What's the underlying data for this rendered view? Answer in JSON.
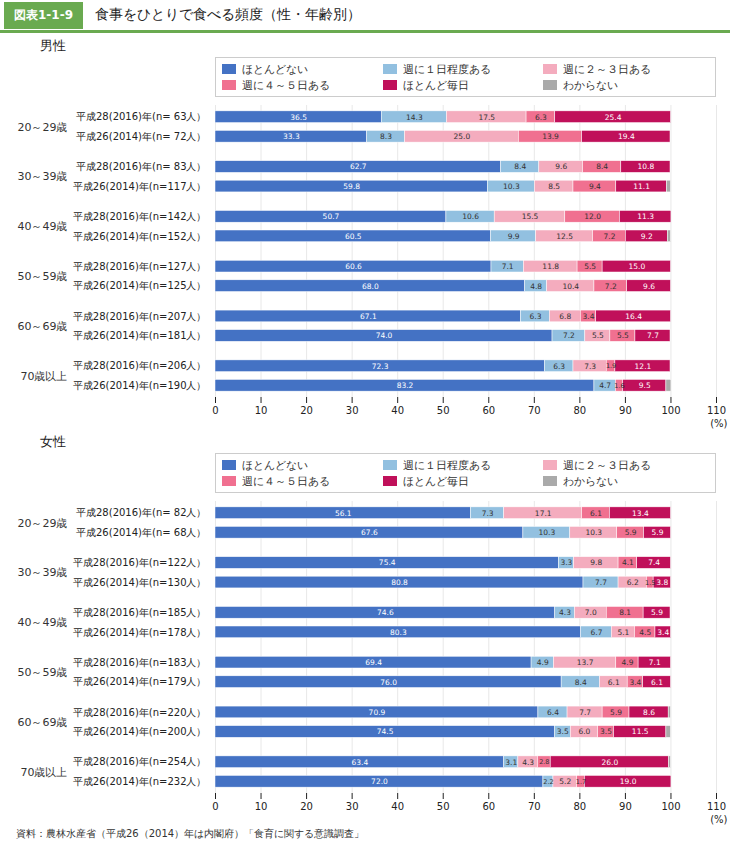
{
  "figure_label": "図表1-1-9",
  "title": "食事をひとりで食べる頻度（性・年齢別）",
  "source": "資料：農林水産省（平成26（2014）年は内閣府）「食育に関する意識調査」",
  "chart_data": [
    {
      "type": "bar",
      "title": "男性",
      "orientation": "horizontal",
      "stacked": true,
      "data_labels": true,
      "legend": "top",
      "grid": true,
      "xlabel": "(%)",
      "xlim": [
        0,
        110
      ],
      "xticks": [
        0,
        10,
        20,
        30,
        40,
        50,
        60,
        70,
        80,
        90,
        100,
        110
      ],
      "categories": [
        "平成28(2016)年(n= 63人）",
        "平成26(2014)年(n= 72人）",
        "平成28(2016)年(n= 83人）",
        "平成26(2014)年(n=117人）",
        "平成28(2016)年(n=142人）",
        "平成26(2014)年(n=152人）",
        "平成28(2016)年(n=127人）",
        "平成26(2014)年(n=125人）",
        "平成28(2016)年(n=207人）",
        "平成26(2014)年(n=181人）",
        "平成28(2016)年(n=206人）",
        "平成26(2014)年(n=190人）"
      ],
      "category_groups": [
        "20～29歳",
        "20～29歳",
        "30～39歳",
        "30～39歳",
        "40～49歳",
        "40～49歳",
        "50～59歳",
        "50～59歳",
        "60～69歳",
        "60～69歳",
        "70歳以上",
        "70歳以上"
      ],
      "series": [
        {
          "name": "ほとんどない",
          "color": "#4472c4",
          "values": [
            36.5,
            33.3,
            62.7,
            59.8,
            50.7,
            60.5,
            60.6,
            68.0,
            67.1,
            74.0,
            72.3,
            83.2
          ],
          "value_labels": [
            "36.5",
            "33.3",
            "62.7",
            "59.8",
            "50.7",
            "60.5",
            "60.6",
            "68.0",
            "67.1",
            "74.0",
            "72.3",
            "83.2"
          ]
        },
        {
          "name": "週に１日程度ある",
          "color": "#92c0e0",
          "values": [
            14.3,
            8.3,
            8.4,
            10.3,
            10.6,
            9.9,
            7.1,
            4.8,
            6.3,
            7.2,
            6.3,
            4.7
          ],
          "value_labels": [
            "14.3",
            "8.3",
            "8.4",
            "10.3",
            "10.6",
            "9.9",
            "7.1",
            "4.8",
            "6.3",
            "7.2",
            "6.3",
            "4.7"
          ]
        },
        {
          "name": "週に２～３日ある",
          "color": "#f4acbe",
          "values": [
            17.5,
            25.0,
            9.6,
            8.5,
            15.5,
            12.5,
            11.8,
            10.4,
            6.8,
            5.5,
            7.3,
            0.0
          ],
          "value_labels": [
            "17.5",
            "25.0",
            "9.6",
            "8.5",
            "15.5",
            "12.5",
            "11.8",
            "10.4",
            "6.8",
            "5.5",
            "7.3",
            null
          ]
        },
        {
          "name": "週に４～５日ある",
          "color": "#f07090",
          "values": [
            6.3,
            13.9,
            8.4,
            9.4,
            12.0,
            7.2,
            5.5,
            7.2,
            3.4,
            5.5,
            1.9,
            1.6
          ],
          "value_labels": [
            "6.3",
            "13.9",
            "8.4",
            "9.4",
            "12.0",
            "7.2",
            "5.5",
            "7.2",
            "3.4",
            "5.5",
            "1.9",
            "1.6"
          ]
        },
        {
          "name": "ほとんど毎日",
          "color": "#c0105a",
          "values": [
            25.4,
            19.4,
            10.8,
            11.1,
            11.3,
            9.2,
            15.0,
            9.6,
            16.4,
            7.7,
            12.1,
            9.5
          ],
          "value_labels": [
            "25.4",
            "19.4",
            "10.8",
            "11.1",
            "11.3",
            "9.2",
            "15.0",
            "9.6",
            "16.4",
            "7.7",
            "12.1",
            "9.5"
          ]
        },
        {
          "name": "わからない",
          "color": "#aaaaaa",
          "values": [
            0.0,
            0.0,
            0.0,
            0.9,
            0.0,
            0.7,
            0.0,
            0.0,
            0.0,
            0.0,
            0.0,
            1.1
          ],
          "value_labels": [
            null,
            null,
            null,
            null,
            null,
            null,
            null,
            null,
            null,
            null,
            null,
            null
          ]
        }
      ]
    },
    {
      "type": "bar",
      "title": "女性",
      "orientation": "horizontal",
      "stacked": true,
      "data_labels": true,
      "legend": "top",
      "grid": true,
      "xlabel": "(%)",
      "xlim": [
        0,
        110
      ],
      "xticks": [
        0,
        10,
        20,
        30,
        40,
        50,
        60,
        70,
        80,
        90,
        100,
        110
      ],
      "categories": [
        "平成28(2016)年(n= 82人）",
        "平成26(2014)年(n= 68人）",
        "平成28(2016)年(n=122人）",
        "平成26(2014)年(n=130人）",
        "平成28(2016)年(n=185人）",
        "平成26(2014)年(n=178人）",
        "平成28(2016)年(n=183人）",
        "平成26(2014)年(n=179人）",
        "平成28(2016)年(n=220人）",
        "平成26(2014)年(n=200人）",
        "平成28(2016)年(n=254人）",
        "平成26(2014)年(n=232人）"
      ],
      "category_groups": [
        "20～29歳",
        "20～29歳",
        "30～39歳",
        "30～39歳",
        "40～49歳",
        "40～49歳",
        "50～59歳",
        "50～59歳",
        "60～69歳",
        "60～69歳",
        "70歳以上",
        "70歳以上"
      ],
      "series": [
        {
          "name": "ほとんどない",
          "color": "#4472c4",
          "values": [
            56.1,
            67.6,
            75.4,
            80.8,
            74.6,
            80.3,
            69.4,
            76.0,
            70.9,
            74.5,
            63.4,
            72.0
          ],
          "value_labels": [
            "56.1",
            "67.6",
            "75.4",
            "80.8",
            "74.6",
            "80.3",
            "69.4",
            "76.0",
            "70.9",
            "74.5",
            "63.4",
            "72.0"
          ]
        },
        {
          "name": "週に１日程度ある",
          "color": "#92c0e0",
          "values": [
            7.3,
            10.3,
            3.3,
            7.7,
            4.3,
            6.7,
            4.9,
            8.4,
            6.4,
            3.5,
            3.1,
            2.2
          ],
          "value_labels": [
            "7.3",
            "10.3",
            "3.3",
            "7.7",
            "4.3",
            "6.7",
            "4.9",
            "8.4",
            "6.4",
            "3.5",
            "3.1",
            "2.2"
          ]
        },
        {
          "name": "週に２～３日ある",
          "color": "#f4acbe",
          "values": [
            17.1,
            10.3,
            9.8,
            6.2,
            7.0,
            5.1,
            13.7,
            6.1,
            7.7,
            6.0,
            4.3,
            5.2
          ],
          "value_labels": [
            "17.1",
            "10.3",
            "9.8",
            "6.2",
            "7.0",
            "5.1",
            "13.7",
            "6.1",
            "7.7",
            "6.0",
            "4.3",
            "5.2"
          ]
        },
        {
          "name": "週に４～５日ある",
          "color": "#f07090",
          "values": [
            6.1,
            5.9,
            4.1,
            1.5,
            8.1,
            4.5,
            4.9,
            3.4,
            5.9,
            3.5,
            2.8,
            1.7
          ],
          "value_labels": [
            "6.1",
            "5.9",
            "4.1",
            "1.5",
            "8.1",
            "4.5",
            "4.9",
            "3.4",
            "5.9",
            "3.5",
            "2.8",
            "1.7"
          ]
        },
        {
          "name": "ほとんど毎日",
          "color": "#c0105a",
          "values": [
            13.4,
            5.9,
            7.4,
            3.8,
            5.9,
            3.4,
            7.1,
            6.1,
            8.6,
            11.5,
            26.0,
            19.0
          ],
          "value_labels": [
            "13.4",
            "5.9",
            "7.4",
            "3.8",
            "5.9",
            "3.4",
            "7.1",
            "6.1",
            "8.6",
            "11.5",
            "26.0",
            "19.0"
          ]
        },
        {
          "name": "わからない",
          "color": "#aaaaaa",
          "values": [
            0.0,
            0.0,
            0.0,
            0.0,
            0.0,
            0.0,
            0.0,
            0.0,
            0.5,
            1.0,
            0.4,
            0.0
          ],
          "value_labels": [
            null,
            null,
            null,
            null,
            null,
            null,
            null,
            null,
            null,
            null,
            null,
            null
          ]
        }
      ]
    }
  ]
}
